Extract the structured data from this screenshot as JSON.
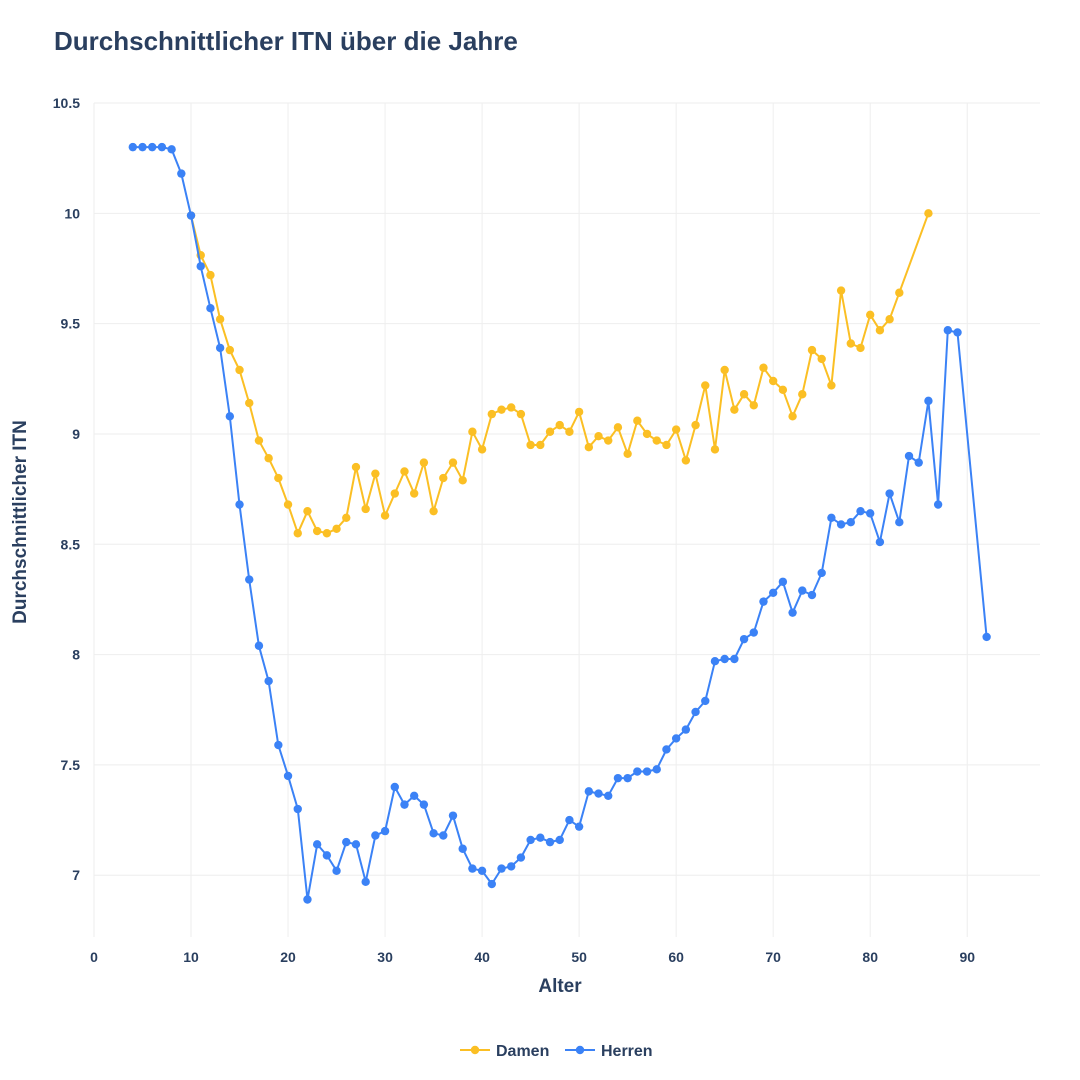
{
  "chart_data": {
    "type": "line",
    "title": "Durchschnittlicher ITN über die Jahre",
    "xlabel": "Alter",
    "ylabel": "Durchschnittlicher ITN",
    "xlim": [
      0,
      97.5
    ],
    "ylim": [
      6.72,
      10.5
    ],
    "xticks": [
      0,
      10,
      20,
      30,
      40,
      50,
      60,
      70,
      80,
      90
    ],
    "yticks": [
      7,
      7.5,
      8,
      8.5,
      9,
      9.5,
      10,
      10.5
    ],
    "ytick_labels": [
      "7",
      "7.5",
      "8",
      "8.5",
      "9",
      "9.5",
      "10",
      "10.5"
    ],
    "grid": true,
    "legend_position": "bottom-center",
    "series": [
      {
        "name": "Damen",
        "color": "#fbbf24",
        "x": [
          10,
          11,
          12,
          13,
          14,
          15,
          16,
          17,
          18,
          19,
          20,
          21,
          22,
          23,
          24,
          25,
          26,
          27,
          28,
          29,
          30,
          31,
          32,
          33,
          34,
          35,
          36,
          37,
          38,
          39,
          40,
          41,
          42,
          43,
          44,
          45,
          46,
          47,
          48,
          49,
          50,
          51,
          52,
          53,
          54,
          55,
          56,
          57,
          58,
          59,
          60,
          61,
          62,
          63,
          64,
          65,
          66,
          67,
          68,
          69,
          70,
          71,
          72,
          73,
          74,
          75,
          76,
          77,
          78,
          79,
          80,
          81,
          82,
          83,
          86
        ],
        "y": [
          9.99,
          9.81,
          9.72,
          9.52,
          9.38,
          9.29,
          9.14,
          8.97,
          8.89,
          8.8,
          8.68,
          8.55,
          8.65,
          8.56,
          8.55,
          8.57,
          8.62,
          8.85,
          8.66,
          8.82,
          8.63,
          8.73,
          8.83,
          8.73,
          8.87,
          8.65,
          8.8,
          8.87,
          8.79,
          9.01,
          8.93,
          9.09,
          9.11,
          9.12,
          9.09,
          8.95,
          8.95,
          9.01,
          9.04,
          9.01,
          9.1,
          8.94,
          8.99,
          8.97,
          9.03,
          8.91,
          9.06,
          9.0,
          8.97,
          8.95,
          9.02,
          8.88,
          9.04,
          9.22,
          8.93,
          9.29,
          9.11,
          9.18,
          9.13,
          9.3,
          9.24,
          9.2,
          9.08,
          9.18,
          9.38,
          9.34,
          9.22,
          9.65,
          9.41,
          9.39,
          9.54,
          9.47,
          9.52,
          9.64,
          10.0
        ]
      },
      {
        "name": "Herren",
        "color": "#3b82f6",
        "x": [
          4,
          5,
          6,
          7,
          8,
          9,
          10,
          11,
          12,
          13,
          14,
          15,
          16,
          17,
          18,
          19,
          20,
          21,
          22,
          23,
          24,
          25,
          26,
          27,
          28,
          29,
          30,
          31,
          32,
          33,
          34,
          35,
          36,
          37,
          38,
          39,
          40,
          41,
          42,
          43,
          44,
          45,
          46,
          47,
          48,
          49,
          50,
          51,
          52,
          53,
          54,
          55,
          56,
          57,
          58,
          59,
          60,
          61,
          62,
          63,
          64,
          65,
          66,
          67,
          68,
          69,
          70,
          71,
          72,
          73,
          74,
          75,
          76,
          77,
          78,
          79,
          80,
          81,
          82,
          83,
          84,
          85,
          86,
          87,
          88,
          89,
          92
        ],
        "y": [
          10.3,
          10.3,
          10.3,
          10.3,
          10.29,
          10.18,
          9.99,
          9.76,
          9.57,
          9.39,
          9.08,
          8.68,
          8.34,
          8.04,
          7.88,
          7.59,
          7.45,
          7.3,
          6.89,
          7.14,
          7.09,
          7.02,
          7.15,
          7.14,
          6.97,
          7.18,
          7.2,
          7.4,
          7.32,
          7.36,
          7.32,
          7.19,
          7.18,
          7.27,
          7.12,
          7.03,
          7.02,
          6.96,
          7.03,
          7.04,
          7.08,
          7.16,
          7.17,
          7.15,
          7.16,
          7.25,
          7.22,
          7.38,
          7.37,
          7.36,
          7.44,
          7.44,
          7.47,
          7.47,
          7.48,
          7.57,
          7.62,
          7.66,
          7.74,
          7.79,
          7.97,
          7.98,
          7.98,
          8.07,
          8.1,
          8.24,
          8.28,
          8.33,
          8.19,
          8.29,
          8.27,
          8.37,
          8.62,
          8.59,
          8.6,
          8.65,
          8.64,
          8.51,
          8.73,
          8.6,
          8.9,
          8.87,
          9.15,
          8.68,
          9.47,
          9.46,
          8.08
        ]
      }
    ]
  }
}
